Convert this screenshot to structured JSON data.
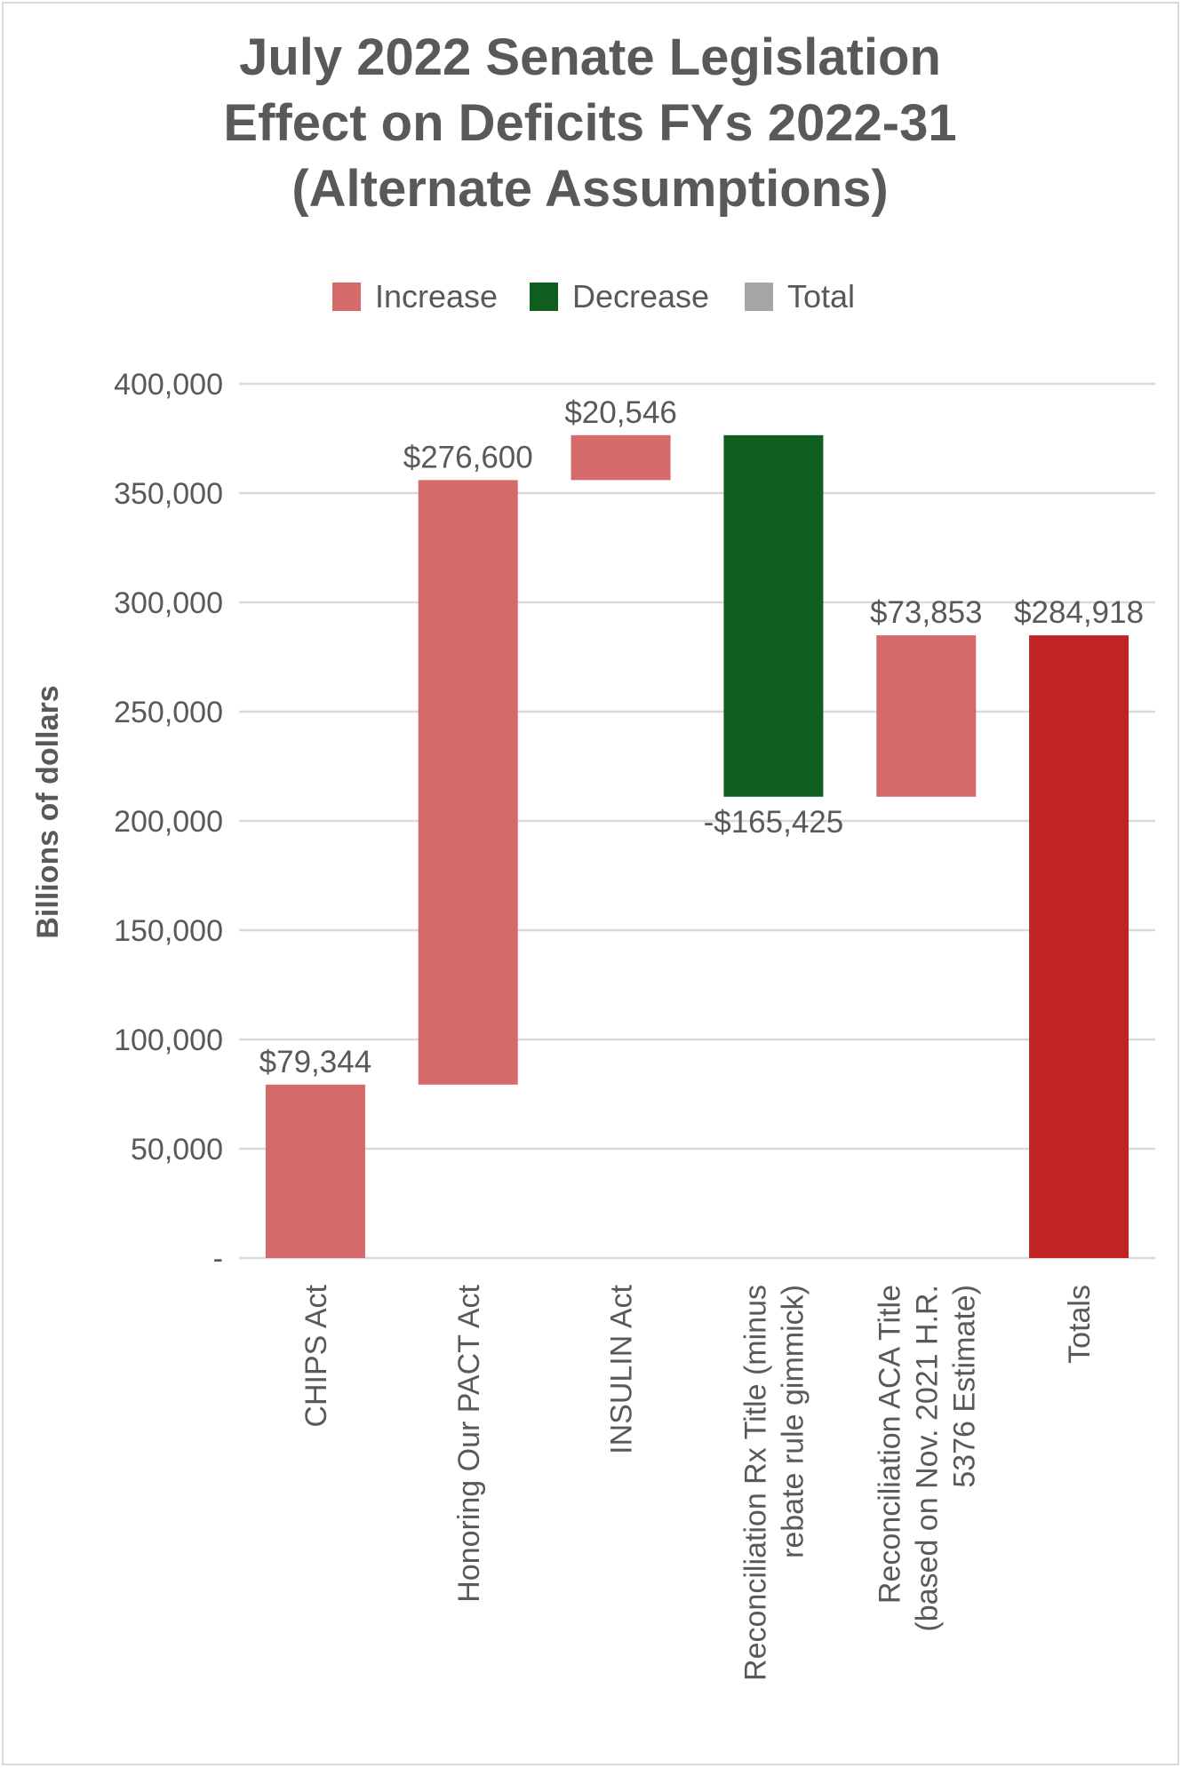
{
  "chart_data": {
    "type": "waterfall",
    "title_lines": [
      "July 2022 Senate Legislation",
      "Effect on Deficits FYs 2022-31",
      "(Alternate Assumptions)"
    ],
    "ylabel": "Billions of dollars",
    "ylim": [
      0,
      400000
    ],
    "y_ticks": [
      {
        "value": 0,
        "label": "-"
      },
      {
        "value": 50000,
        "label": "50,000"
      },
      {
        "value": 100000,
        "label": "100,000"
      },
      {
        "value": 150000,
        "label": "150,000"
      },
      {
        "value": 200000,
        "label": "200,000"
      },
      {
        "value": 250000,
        "label": "250,000"
      },
      {
        "value": 300000,
        "label": "300,000"
      },
      {
        "value": 350000,
        "label": "350,000"
      },
      {
        "value": 400000,
        "label": "400,000"
      }
    ],
    "grid": true,
    "legend_position": "top",
    "legend": [
      {
        "label": "Increase",
        "color": "#d46a6a"
      },
      {
        "label": "Decrease",
        "color": "#0f5e1f"
      },
      {
        "label": "Total",
        "color": "#a6a6a6"
      }
    ],
    "colors": {
      "increase": "#d46a6a",
      "decrease": "#0f5e1f",
      "total": "#c02325"
    },
    "bars": [
      {
        "category_lines": [
          "CHIPS Act"
        ],
        "value": 79344,
        "kind": "increase",
        "label": "$79,344"
      },
      {
        "category_lines": [
          "Honoring Our PACT Act"
        ],
        "value": 276600,
        "kind": "increase",
        "label": "$276,600"
      },
      {
        "category_lines": [
          "INSULIN Act"
        ],
        "value": 20546,
        "kind": "increase",
        "label": "$20,546"
      },
      {
        "category_lines": [
          "Reconciliation Rx Title (minus",
          "rebate rule gimmick)"
        ],
        "value": -165425,
        "kind": "decrease",
        "label": "-$165,425"
      },
      {
        "category_lines": [
          "Reconciliation ACA Title",
          "(based on Nov. 2021 H.R.",
          "5376 Estimate)"
        ],
        "value": 73853,
        "kind": "increase",
        "label": "$73,853"
      },
      {
        "category_lines": [
          "Totals"
        ],
        "value": 284918,
        "kind": "total",
        "label": "$284,918"
      }
    ]
  }
}
